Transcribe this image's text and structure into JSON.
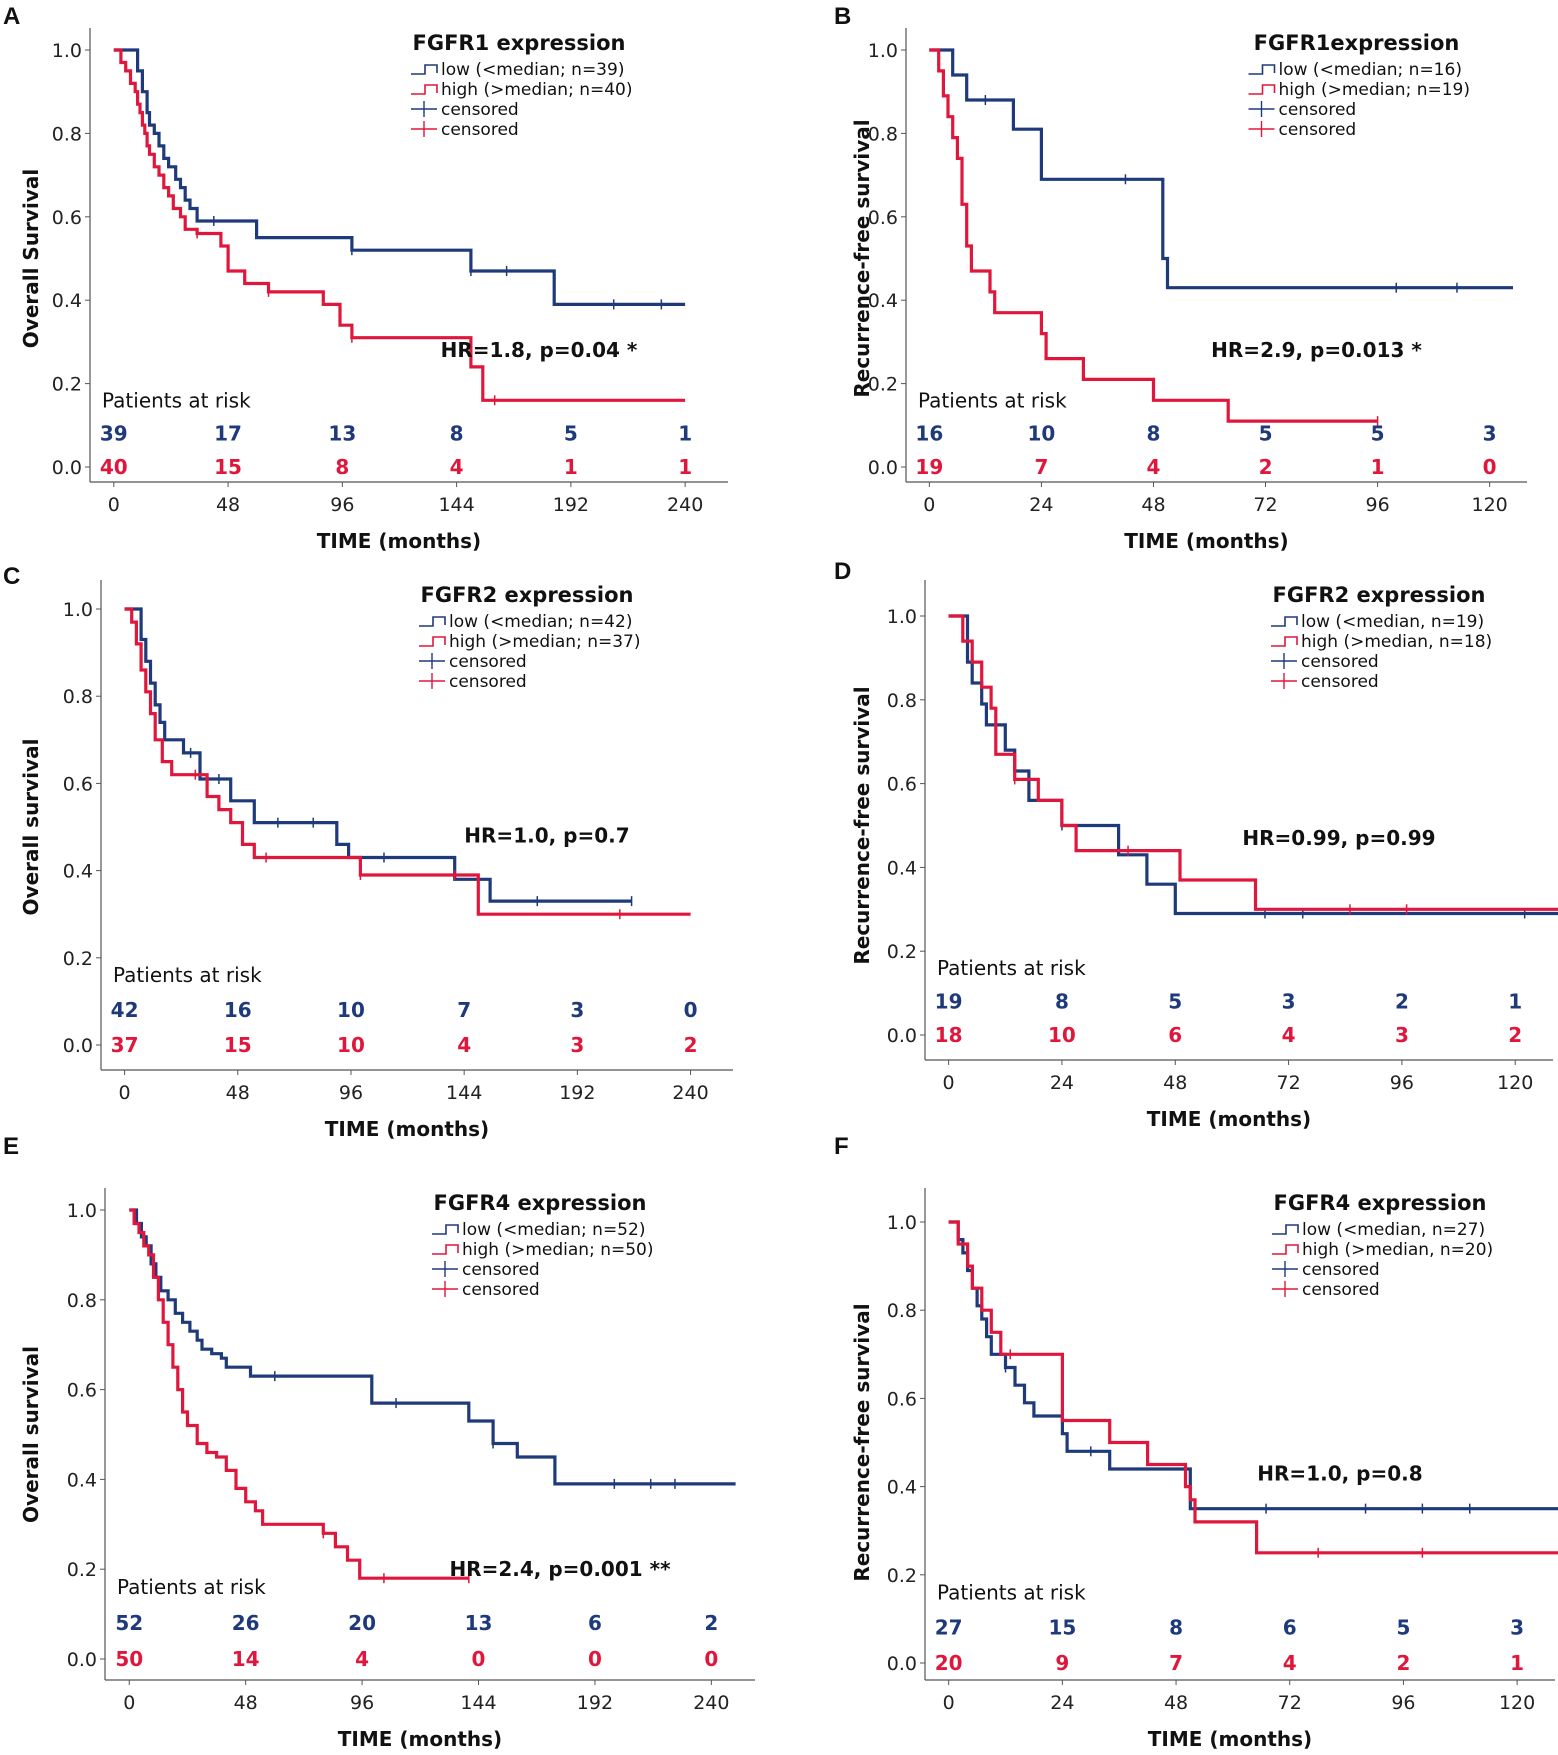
{
  "colors": {
    "low": "#1f3a7a",
    "high": "#e0173c",
    "axis": "#555555"
  },
  "chart_data": [
    {
      "panel": "A",
      "type": "line",
      "title": "FGFR1 expression",
      "xlabel": "TIME (months)",
      "ylabel": "Overall Survival",
      "xlim": [
        -10,
        258
      ],
      "ylim": [
        0,
        1.0
      ],
      "xticks": [
        "0",
        "48",
        "96",
        "144",
        "192",
        "240"
      ],
      "xtick_values": [
        0,
        48,
        96,
        144,
        192,
        240
      ],
      "yticks": [
        "0.0",
        "0.2",
        "0.4",
        "0.6",
        "0.8",
        "1.0"
      ],
      "legend": [
        "low (<median; n=39)",
        "high (>median; n=40)",
        "censored",
        "censored"
      ],
      "annotation": "HR=1.8, p=0.04 *",
      "risk_title": "Patients at risk",
      "risk_low": [
        "39",
        "17",
        "13",
        "8",
        "5",
        "1"
      ],
      "risk_high": [
        "40",
        "15",
        "8",
        "4",
        "1",
        "1"
      ],
      "series": [
        {
          "name": "low",
          "x": [
            0,
            5,
            10,
            12,
            14,
            15,
            17,
            19,
            21,
            23,
            26,
            28,
            30,
            32,
            35,
            38,
            42,
            50,
            60,
            80,
            100,
            130,
            150,
            165,
            185,
            210,
            230,
            240
          ],
          "y": [
            1.0,
            1.0,
            0.95,
            0.9,
            0.85,
            0.82,
            0.8,
            0.77,
            0.74,
            0.72,
            0.69,
            0.67,
            0.64,
            0.62,
            0.59,
            0.59,
            0.59,
            0.59,
            0.55,
            0.55,
            0.52,
            0.52,
            0.47,
            0.47,
            0.39,
            0.39,
            0.39,
            0.39
          ],
          "censor_x": [
            42,
            100,
            150,
            165,
            210,
            230
          ]
        },
        {
          "name": "high",
          "x": [
            0,
            3,
            5,
            7,
            9,
            10,
            11,
            12,
            13,
            14,
            15,
            17,
            19,
            21,
            23,
            25,
            28,
            30,
            35,
            38,
            42,
            45,
            48,
            55,
            65,
            80,
            88,
            95,
            100,
            140,
            150,
            155,
            160,
            240
          ],
          "y": [
            1.0,
            0.97,
            0.95,
            0.92,
            0.9,
            0.87,
            0.85,
            0.82,
            0.8,
            0.77,
            0.75,
            0.72,
            0.7,
            0.67,
            0.65,
            0.62,
            0.6,
            0.57,
            0.56,
            0.56,
            0.56,
            0.53,
            0.47,
            0.44,
            0.42,
            0.42,
            0.39,
            0.34,
            0.31,
            0.31,
            0.24,
            0.16,
            0.16,
            0.16
          ],
          "censor_x": [
            35,
            65,
            100,
            160
          ]
        }
      ]
    },
    {
      "panel": "B",
      "type": "line",
      "title": "FGFR1expression",
      "xlabel": "TIME (months)",
      "ylabel": "Recurrence-free survival",
      "xlim": [
        -5,
        128
      ],
      "ylim": [
        0,
        1.0
      ],
      "xticks": [
        "0",
        "24",
        "48",
        "72",
        "96",
        "120"
      ],
      "xtick_values": [
        0,
        24,
        48,
        72,
        96,
        120
      ],
      "yticks": [
        "0.0",
        "0.2",
        "0.4",
        "0.6",
        "0.8",
        "1.0"
      ],
      "legend": [
        "low (<median; n=16)",
        "high (>median; n=19)",
        "censored",
        "censored"
      ],
      "annotation": "HR=2.9, p=0.013 *",
      "risk_title": "Patients at risk",
      "risk_low": [
        "16",
        "10",
        "8",
        "5",
        "5",
        "3"
      ],
      "risk_high": [
        "19",
        "7",
        "4",
        "2",
        "1",
        "0"
      ],
      "series": [
        {
          "name": "low",
          "x": [
            0,
            4,
            5,
            8,
            12,
            18,
            24,
            48,
            50,
            51,
            60,
            100,
            120,
            125
          ],
          "y": [
            1.0,
            1.0,
            0.94,
            0.88,
            0.88,
            0.81,
            0.69,
            0.69,
            0.5,
            0.43,
            0.43,
            0.43,
            0.43,
            0.43
          ],
          "censor_x": [
            12,
            42,
            100,
            113
          ]
        },
        {
          "name": "high",
          "x": [
            0,
            2,
            3,
            4,
            5,
            6,
            7,
            8,
            9,
            13,
            14,
            16,
            20,
            24,
            25,
            33,
            34,
            48,
            49,
            64,
            65,
            96
          ],
          "y": [
            1.0,
            0.95,
            0.89,
            0.84,
            0.79,
            0.74,
            0.63,
            0.53,
            0.47,
            0.42,
            0.37,
            0.37,
            0.37,
            0.32,
            0.26,
            0.21,
            0.21,
            0.16,
            0.16,
            0.11,
            0.11,
            0.11
          ],
          "censor_x": [
            96
          ]
        }
      ]
    },
    {
      "panel": "C",
      "type": "line",
      "title": "FGFR2 expression",
      "xlabel": "TIME (months)",
      "ylabel": "Overall survival",
      "xlim": [
        -10,
        258
      ],
      "ylim": [
        0,
        1.0
      ],
      "xticks": [
        "0",
        "48",
        "96",
        "144",
        "192",
        "240"
      ],
      "xtick_values": [
        0,
        48,
        96,
        144,
        192,
        240
      ],
      "yticks": [
        "0.0",
        "0.2",
        "0.4",
        "0.6",
        "0.8",
        "1.0"
      ],
      "legend": [
        "low (<median; n=42)",
        "high (>median; n=37)",
        "censored",
        "censored"
      ],
      "annotation": "HR=1.0, p=0.7",
      "risk_title": "Patients at risk",
      "risk_low": [
        "42",
        "16",
        "10",
        "7",
        "3",
        "0"
      ],
      "risk_high": [
        "37",
        "15",
        "10",
        "4",
        "3",
        "2"
      ],
      "series": [
        {
          "name": "low",
          "x": [
            0,
            5,
            7,
            9,
            11,
            13,
            15,
            17,
            20,
            25,
            32,
            40,
            45,
            55,
            80,
            90,
            95,
            125,
            140,
            150,
            155,
            190,
            215
          ],
          "y": [
            1.0,
            1.0,
            0.93,
            0.88,
            0.83,
            0.78,
            0.74,
            0.7,
            0.7,
            0.67,
            0.61,
            0.61,
            0.56,
            0.51,
            0.51,
            0.46,
            0.43,
            0.43,
            0.38,
            0.38,
            0.33,
            0.33,
            0.33
          ],
          "censor_x": [
            28,
            40,
            65,
            80,
            110,
            175,
            215
          ]
        },
        {
          "name": "high",
          "x": [
            0,
            3,
            5,
            7,
            9,
            11,
            13,
            16,
            20,
            30,
            35,
            40,
            45,
            50,
            52,
            55,
            80,
            95,
            100,
            140,
            144,
            150,
            240
          ],
          "y": [
            1.0,
            0.97,
            0.92,
            0.86,
            0.81,
            0.76,
            0.7,
            0.65,
            0.62,
            0.62,
            0.57,
            0.54,
            0.51,
            0.46,
            0.46,
            0.43,
            0.43,
            0.43,
            0.39,
            0.39,
            0.39,
            0.3,
            0.3
          ],
          "censor_x": [
            30,
            60,
            100,
            140,
            210
          ]
        }
      ]
    },
    {
      "panel": "D",
      "type": "line",
      "title": "FGFR2 expression",
      "xlabel": "TIME (months)",
      "ylabel": "Recurrence-free survival",
      "xlim": [
        -5,
        128
      ],
      "ylim": [
        0,
        1.0
      ],
      "xticks": [
        "0",
        "24",
        "48",
        "72",
        "96",
        "120"
      ],
      "xtick_values": [
        0,
        24,
        48,
        72,
        96,
        120
      ],
      "yticks": [
        "0.0",
        "0.2",
        "0.4",
        "0.6",
        "0.8",
        "1.0"
      ],
      "legend": [
        "low (<median, n=19)",
        "high (>median, n=18)",
        "censored",
        "censored"
      ],
      "annotation": "HR=0.99, p=0.99",
      "risk_title": "Patients at risk",
      "risk_low": [
        "19",
        "8",
        "5",
        "3",
        "2",
        "1"
      ],
      "risk_high": [
        "18",
        "10",
        "6",
        "4",
        "3",
        "2"
      ],
      "series": [
        {
          "name": "low",
          "x": [
            0,
            3,
            4,
            5,
            7,
            8,
            10,
            12,
            14,
            17,
            22,
            24,
            34,
            36,
            42,
            48,
            50,
            100,
            120,
            131
          ],
          "y": [
            1.0,
            1.0,
            0.89,
            0.84,
            0.79,
            0.74,
            0.74,
            0.68,
            0.63,
            0.56,
            0.56,
            0.5,
            0.5,
            0.43,
            0.36,
            0.29,
            0.29,
            0.29,
            0.29,
            0.29
          ],
          "censor_x": [
            10,
            24,
            67,
            75,
            122
          ]
        },
        {
          "name": "high",
          "x": [
            0,
            2,
            3,
            5,
            7,
            9,
            10,
            14,
            19,
            24,
            27,
            48,
            49,
            64,
            65,
            131
          ],
          "y": [
            1.0,
            1.0,
            0.94,
            0.89,
            0.83,
            0.78,
            0.67,
            0.61,
            0.56,
            0.5,
            0.44,
            0.44,
            0.37,
            0.37,
            0.3,
            0.3
          ],
          "censor_x": [
            14,
            38,
            85,
            97,
            131
          ]
        }
      ]
    },
    {
      "panel": "E",
      "type": "line",
      "title": "FGFR4 expression",
      "xlabel": "TIME (months)",
      "ylabel": "Overall survival",
      "xlim": [
        -10,
        258
      ],
      "ylim": [
        0,
        1.0
      ],
      "xticks": [
        "0",
        "48",
        "96",
        "144",
        "192",
        "240"
      ],
      "xtick_values": [
        0,
        48,
        96,
        144,
        192,
        240
      ],
      "yticks": [
        "0.0",
        "0.2",
        "0.4",
        "0.6",
        "0.8",
        "1.0"
      ],
      "legend": [
        "low (<median; n=52)",
        "high (>median; n=50)",
        "censored",
        "censored"
      ],
      "annotation": "HR=2.4, p=0.001 **",
      "risk_title": "Patients at risk",
      "risk_low": [
        "52",
        "26",
        "20",
        "13",
        "6",
        "2"
      ],
      "risk_high": [
        "50",
        "14",
        "4",
        "0",
        "0",
        "0"
      ],
      "series": [
        {
          "name": "low",
          "x": [
            0,
            3,
            5,
            7,
            9,
            11,
            13,
            16,
            19,
            22,
            25,
            28,
            30,
            34,
            38,
            40,
            45,
            50,
            60,
            75,
            95,
            100,
            120,
            130,
            140,
            145,
            150,
            160,
            175,
            175.5,
            200,
            220,
            250
          ],
          "y": [
            1.0,
            0.97,
            0.94,
            0.92,
            0.88,
            0.85,
            0.82,
            0.8,
            0.77,
            0.75,
            0.73,
            0.71,
            0.69,
            0.68,
            0.67,
            0.65,
            0.65,
            0.63,
            0.63,
            0.63,
            0.63,
            0.57,
            0.57,
            0.57,
            0.53,
            0.53,
            0.48,
            0.45,
            0.45,
            0.39,
            0.39,
            0.39,
            0.39
          ],
          "censor_x": [
            60,
            110,
            150,
            200,
            215,
            225
          ]
        },
        {
          "name": "high",
          "x": [
            0,
            2,
            4,
            6,
            8,
            10,
            12,
            14,
            16,
            18,
            20,
            22,
            24,
            28,
            32,
            36,
            40,
            44,
            48,
            52,
            55,
            60,
            70,
            80,
            85,
            90,
            95,
            140
          ],
          "y": [
            1.0,
            0.97,
            0.95,
            0.92,
            0.9,
            0.85,
            0.8,
            0.75,
            0.7,
            0.65,
            0.6,
            0.55,
            0.52,
            0.48,
            0.46,
            0.45,
            0.42,
            0.38,
            0.35,
            0.33,
            0.3,
            0.3,
            0.3,
            0.28,
            0.25,
            0.22,
            0.18,
            0.18
          ],
          "censor_x": [
            80,
            105,
            140
          ]
        }
      ]
    },
    {
      "panel": "F",
      "type": "line",
      "title": "FGFR4 expression",
      "xlabel": "TIME (months)",
      "ylabel": "Recurrence-free survival",
      "xlim": [
        -5,
        128
      ],
      "ylim": [
        0,
        1.0
      ],
      "xticks": [
        "0",
        "24",
        "48",
        "72",
        "96",
        "120"
      ],
      "xtick_values": [
        0,
        24,
        48,
        72,
        96,
        120
      ],
      "yticks": [
        "0.0",
        "0.2",
        "0.4",
        "0.6",
        "0.8",
        "1.0"
      ],
      "legend": [
        "low (<median, n=27)",
        "high (>median, n=20)",
        "censored",
        "censored"
      ],
      "annotation": "HR=1.0, p=0.8",
      "risk_title": "Patients at risk",
      "risk_low": [
        "27",
        "15",
        "8",
        "6",
        "5",
        "3"
      ],
      "risk_high": [
        "20",
        "9",
        "7",
        "4",
        "2",
        "1"
      ],
      "series": [
        {
          "name": "low",
          "x": [
            0,
            2,
            3,
            4,
            5,
            6,
            7,
            8,
            9,
            10,
            12,
            14,
            16,
            18,
            21,
            24,
            25,
            32,
            34,
            50,
            51,
            67,
            88,
            100,
            120,
            131
          ],
          "y": [
            1.0,
            0.96,
            0.93,
            0.89,
            0.85,
            0.81,
            0.78,
            0.74,
            0.7,
            0.7,
            0.67,
            0.63,
            0.59,
            0.56,
            0.56,
            0.52,
            0.48,
            0.48,
            0.44,
            0.44,
            0.35,
            0.35,
            0.35,
            0.35,
            0.35,
            0.35
          ],
          "censor_x": [
            12,
            30,
            67,
            88,
            100,
            110
          ]
        },
        {
          "name": "high",
          "x": [
            0,
            2,
            4,
            5,
            7,
            9,
            11,
            13,
            16,
            18,
            24,
            34,
            42,
            49,
            50,
            51,
            52,
            64,
            65,
            131
          ],
          "y": [
            1.0,
            0.95,
            0.9,
            0.85,
            0.8,
            0.75,
            0.7,
            0.7,
            0.7,
            0.7,
            0.55,
            0.5,
            0.45,
            0.45,
            0.4,
            0.37,
            0.32,
            0.32,
            0.25,
            0.25
          ],
          "censor_x": [
            13,
            78,
            100
          ]
        }
      ]
    }
  ]
}
